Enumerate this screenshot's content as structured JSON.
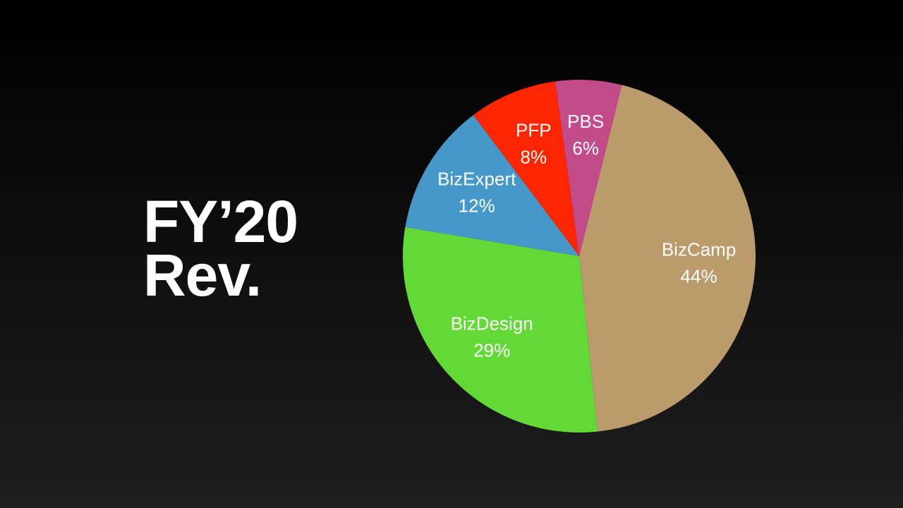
{
  "chart_data": {
    "type": "pie",
    "title": "FY’20 Rev.",
    "categories": [
      "BizCamp",
      "BizDesign",
      "BizExpert",
      "PFP",
      "PBS"
    ],
    "values": [
      44,
      29,
      12,
      8,
      6
    ],
    "value_labels": [
      "44%",
      "29%",
      "12%",
      "8%",
      "6%"
    ],
    "colors": [
      "#bb9a6b",
      "#62d936",
      "#4598c8",
      "#fd2600",
      "#c34b8a"
    ]
  }
}
